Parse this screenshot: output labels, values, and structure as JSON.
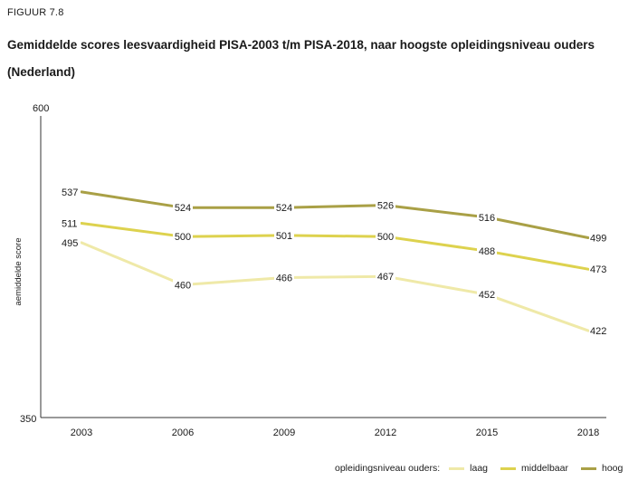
{
  "figure_label": "FIGUUR 7.8",
  "title": "Gemiddelde scores leesvaardigheid PISA-2003 t/m PISA-2018, naar hoogste opleidingsniveau ouders (Nederland)",
  "chart_data": {
    "type": "line",
    "x": [
      "2003",
      "2006",
      "2009",
      "2012",
      "2015",
      "2018"
    ],
    "ylabel": "aemiddelde score",
    "ylim": [
      350,
      600
    ],
    "y_ticks": [
      "350",
      "600"
    ],
    "grid": false,
    "legend_position": "bottom-right",
    "legend_title": "opleidingsniveau ouders:",
    "series": [
      {
        "name": "laag",
        "color": "#efe9a8",
        "values": [
          495,
          460,
          466,
          467,
          452,
          422
        ]
      },
      {
        "name": "middelbaar",
        "color": "#ddd24e",
        "values": [
          511,
          500,
          501,
          500,
          488,
          473
        ]
      },
      {
        "name": "hoog",
        "color": "#a9a046",
        "values": [
          537,
          524,
          524,
          526,
          516,
          499
        ]
      }
    ]
  }
}
